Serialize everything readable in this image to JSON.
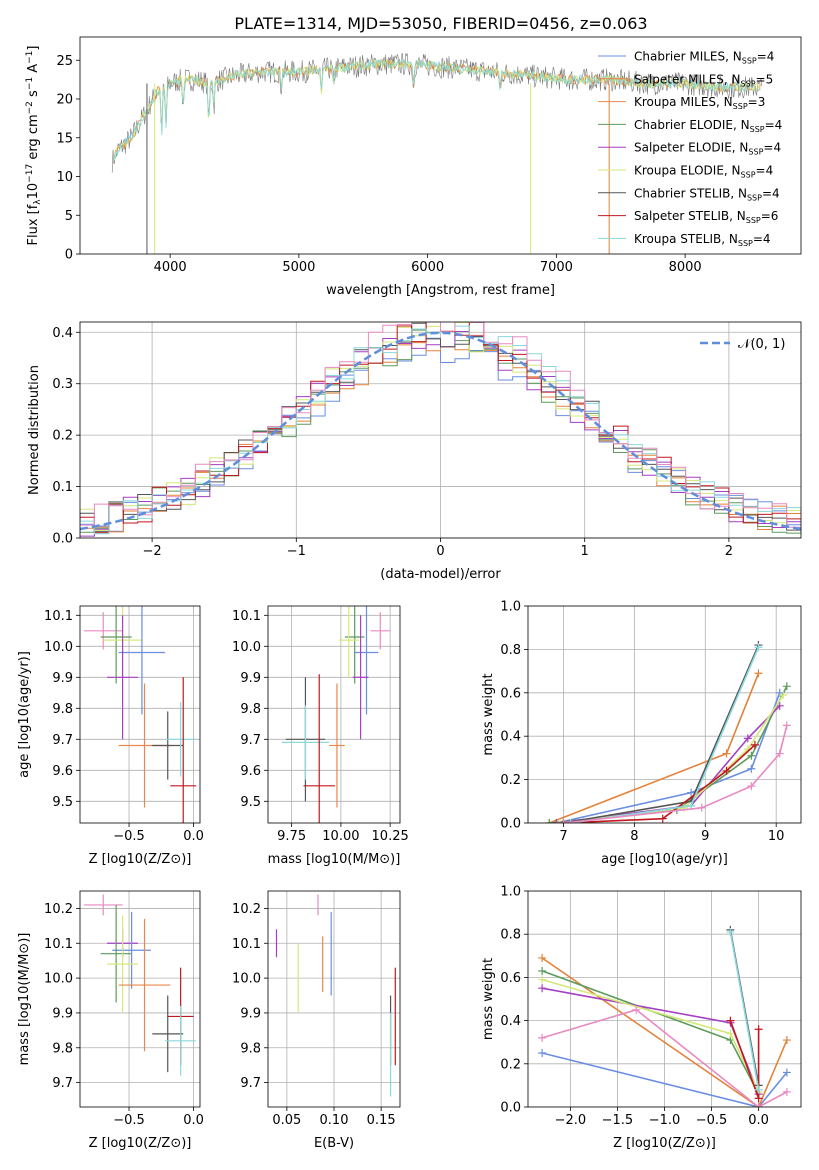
{
  "figure_title": "PLATE=1314, MJD=53050, FIBERID=0456, z=0.063",
  "colors": {
    "Chabrier MILES": "#6a8ee0",
    "Salpeter MILES": "#e4823a",
    "Kroupa MILES": "#e8884f",
    "Chabrier ELODIE": "#5e9b5c",
    "Salpeter ELODIE": "#a53fc4",
    "Kroupa ELODIE": "#d4e87a",
    "Chabrier STELIB": "#555555",
    "Salpeter STELIB": "#c0181e",
    "Kroupa STELIB": "#88d8dc",
    "pink": "#e88ac2",
    "gaussian": "#5f8fdc"
  },
  "chart_data": [
    {
      "id": "spectrum",
      "type": "line",
      "title": "PLATE=1314, MJD=53050, FIBERID=0456, z=0.063",
      "xlabel": "wavelength [Angstrom, rest frame]",
      "ylabel": "Flux [f_λ 10^-17 erg cm^-2 s^-1 A^-1]",
      "xlim": [
        3300,
        8900
      ],
      "ylim": [
        0,
        28
      ],
      "xticks": [
        4000,
        5000,
        6000,
        7000,
        8000
      ],
      "yticks": [
        0,
        5,
        10,
        15,
        20,
        25
      ],
      "legend_position": "top-right",
      "legend": [
        "Chabrier MILES, N_SSP=4",
        "Salpeter MILES, N_SSP=5",
        "Kroupa MILES, N_SSP=3",
        "Chabrier ELODIE, N_SSP=4",
        "Salpeter ELODIE, N_SSP=4",
        "Kroupa ELODIE, N_SSP=4",
        "Chabrier STELIB, N_SSP=4",
        "Salpeter STELIB, N_SSP=6",
        "Kroupa STELIB, N_SSP=4"
      ],
      "continuum": {
        "x": [
          3550,
          3600,
          3700,
          3800,
          3900,
          4000,
          4100,
          4200,
          4300,
          4500,
          4700,
          5000,
          5300,
          5600,
          5900,
          6200,
          6500,
          6800,
          7100,
          7400,
          7700,
          8000,
          8300,
          8600
        ],
        "y": [
          12,
          13.5,
          15,
          18,
          21,
          22,
          22.5,
          22.5,
          22,
          23,
          23.5,
          23.5,
          24,
          24.5,
          24.5,
          24,
          23.5,
          23,
          22.5,
          22.5,
          22,
          22,
          21.5,
          21.5
        ]
      }
    },
    {
      "id": "residuals",
      "type": "step",
      "xlabel": "(data-model)/error",
      "ylabel": "Normed distribution",
      "xlim": [
        -2.5,
        2.5
      ],
      "ylim": [
        0,
        0.42
      ],
      "xticks": [
        -2,
        -1,
        0,
        1,
        2
      ],
      "yticks": [
        0.0,
        0.1,
        0.2,
        0.3,
        0.4
      ],
      "grid": true,
      "legend": [
        "N(0,1)"
      ],
      "legend_position": "top-right",
      "gaussian": {
        "mean": 0,
        "sigma": 1
      }
    },
    {
      "id": "age-vs-Z",
      "type": "errorbar",
      "xlabel": "Z [log10(Z/Z⊙)]",
      "ylabel": "age [log10(age/yr)]",
      "xlim": [
        -0.88,
        0.05
      ],
      "ylim": [
        9.43,
        10.13
      ],
      "xticks": [
        -0.5,
        0.0
      ],
      "yticks": [
        9.5,
        9.6,
        9.7,
        9.8,
        9.9,
        10.0,
        10.1
      ],
      "grid": true,
      "points": [
        {
          "model": "pink",
          "x": -0.7,
          "xerr": 0.15,
          "y": 10.05,
          "yerr": 0.06
        },
        {
          "model": "Chabrier ELODIE",
          "x": -0.6,
          "xerr": 0.12,
          "y": 10.03,
          "yerr": 0.15
        },
        {
          "model": "Kroupa ELODIE",
          "x": -0.55,
          "xerr": 0.15,
          "y": 10.02,
          "yerr": 0.12
        },
        {
          "model": "Chabrier MILES",
          "x": -0.4,
          "xerr": 0.18,
          "y": 9.98,
          "yerr": 0.2
        },
        {
          "model": "Salpeter ELODIE",
          "x": -0.55,
          "xerr": 0.12,
          "y": 9.9,
          "yerr": 0.2
        },
        {
          "model": "Kroupa MILES",
          "x": -0.38,
          "xerr": 0.2,
          "y": 9.68,
          "yerr": 0.2
        },
        {
          "model": "Chabrier STELIB",
          "x": -0.2,
          "xerr": 0.12,
          "y": 9.68,
          "yerr": 0.11
        },
        {
          "model": "Kroupa STELIB",
          "x": -0.1,
          "xerr": 0.12,
          "y": 9.7,
          "yerr": 0.12
        },
        {
          "model": "Salpeter STELIB",
          "x": -0.08,
          "xerr": 0.1,
          "y": 9.55,
          "yerr": 0.35
        }
      ]
    },
    {
      "id": "age-vs-mass",
      "type": "errorbar",
      "xlabel": "mass [log10(M/M⊙)]",
      "ylim": [
        9.43,
        10.13
      ],
      "xlim": [
        9.63,
        10.3
      ],
      "xticks": [
        9.75,
        10.0,
        10.25
      ],
      "yticks": [
        9.5,
        9.6,
        9.7,
        9.8,
        9.9,
        10.0,
        10.1
      ],
      "grid": true,
      "points": [
        {
          "model": "pink",
          "x": 10.2,
          "xerr": 0.05,
          "y": 10.05,
          "yerr": 0.06
        },
        {
          "model": "Chabrier ELODIE",
          "x": 10.07,
          "xerr": 0.05,
          "y": 10.03,
          "yerr": 0.15
        },
        {
          "model": "Kroupa ELODIE",
          "x": 10.04,
          "xerr": 0.05,
          "y": 10.02,
          "yerr": 0.12
        },
        {
          "model": "Chabrier MILES",
          "x": 10.13,
          "xerr": 0.06,
          "y": 9.98,
          "yerr": 0.2
        },
        {
          "model": "Salpeter ELODIE",
          "x": 10.1,
          "xerr": 0.04,
          "y": 9.9,
          "yerr": 0.2
        },
        {
          "model": "Kroupa MILES",
          "x": 9.98,
          "xerr": 0.04,
          "y": 9.68,
          "yerr": 0.2
        },
        {
          "model": "Chabrier STELIB",
          "x": 9.82,
          "xerr": 0.1,
          "y": 9.7,
          "yerr": 0.2
        },
        {
          "model": "Kroupa STELIB",
          "x": 9.82,
          "xerr": 0.12,
          "y": 9.69,
          "yerr": 0.12
        },
        {
          "model": "Salpeter STELIB",
          "x": 9.89,
          "xerr": 0.08,
          "y": 9.55,
          "yerr": 0.36
        }
      ]
    },
    {
      "id": "weight-vs-age",
      "type": "line",
      "xlabel": "age [log10(age/yr)]",
      "ylabel": "mass weight",
      "xlim": [
        6.5,
        10.35
      ],
      "ylim": [
        0,
        1.0
      ],
      "xticks": [
        7,
        8,
        9,
        10
      ],
      "yticks": [
        0.0,
        0.2,
        0.4,
        0.6,
        0.8,
        1.0
      ],
      "grid": true,
      "series": [
        {
          "model": "Chabrier MILES",
          "x": [
            6.9,
            8.8,
            9.65,
            10.05
          ],
          "y": [
            0.0,
            0.14,
            0.25,
            0.6
          ]
        },
        {
          "model": "Salpeter MILES",
          "x": [
            6.8,
            9.3,
            9.75
          ],
          "y": [
            0.0,
            0.32,
            0.69
          ]
        },
        {
          "model": "Chabrier ELODIE",
          "x": [
            6.8,
            8.6,
            9.65,
            10.15
          ],
          "y": [
            0.0,
            0.06,
            0.31,
            0.63
          ]
        },
        {
          "model": "Salpeter ELODIE",
          "x": [
            6.9,
            8.8,
            9.6,
            10.05
          ],
          "y": [
            0.0,
            0.08,
            0.39,
            0.54
          ]
        },
        {
          "model": "Kroupa ELODIE",
          "x": [
            6.95,
            8.7,
            9.6,
            10.1
          ],
          "y": [
            0.0,
            0.07,
            0.34,
            0.59
          ]
        },
        {
          "model": "Chabrier STELIB",
          "x": [
            7.0,
            8.8,
            9.75
          ],
          "y": [
            0.0,
            0.1,
            0.82
          ]
        },
        {
          "model": "Salpeter STELIB",
          "x": [
            7.0,
            8.4,
            9.3,
            9.7
          ],
          "y": [
            0.0,
            0.02,
            0.24,
            0.36
          ]
        },
        {
          "model": "Kroupa STELIB",
          "x": [
            7.1,
            8.8,
            9.75
          ],
          "y": [
            0.0,
            0.08,
            0.81
          ]
        },
        {
          "model": "pink",
          "x": [
            7.0,
            8.95,
            9.65,
            10.05,
            10.15
          ],
          "y": [
            0.0,
            0.07,
            0.17,
            0.32,
            0.45
          ]
        }
      ]
    },
    {
      "id": "mass-vs-Z",
      "type": "errorbar",
      "xlabel": "Z [log10(Z/Z⊙)]",
      "ylabel": "mass [log10(M/M⊙)]",
      "xlim": [
        -0.88,
        0.05
      ],
      "ylim": [
        9.63,
        10.25
      ],
      "xticks": [
        -0.5,
        0.0
      ],
      "yticks": [
        9.7,
        9.8,
        9.9,
        10.0,
        10.1,
        10.2
      ],
      "grid": true,
      "points": [
        {
          "model": "pink",
          "x": -0.7,
          "xerr": 0.15,
          "y": 10.21,
          "yerr": 0.03
        },
        {
          "model": "Salpeter ELODIE",
          "x": -0.55,
          "xerr": 0.12,
          "y": 10.1,
          "yerr": 0.04
        },
        {
          "model": "Chabrier MILES",
          "x": -0.48,
          "xerr": 0.15,
          "y": 10.08,
          "yerr": 0.11
        },
        {
          "model": "Chabrier ELODIE",
          "x": -0.6,
          "xerr": 0.12,
          "y": 10.07,
          "yerr": 0.14
        },
        {
          "model": "Kroupa ELODIE",
          "x": -0.55,
          "xerr": 0.12,
          "y": 10.04,
          "yerr": 0.14
        },
        {
          "model": "Kroupa MILES",
          "x": -0.38,
          "xerr": 0.2,
          "y": 9.98,
          "yerr": 0.19
        },
        {
          "model": "Chabrier STELIB",
          "x": -0.2,
          "xerr": 0.12,
          "y": 9.84,
          "yerr": 0.11
        },
        {
          "model": "Salpeter STELIB",
          "x": -0.1,
          "xerr": 0.1,
          "y": 9.89,
          "yerr": 0.14
        },
        {
          "model": "Kroupa STELIB",
          "x": -0.1,
          "xerr": 0.12,
          "y": 9.82,
          "yerr": 0.1
        }
      ]
    },
    {
      "id": "mass-vs-EBV",
      "type": "errorbar",
      "xlabel": "E(B-V)",
      "xlim": [
        0.03,
        0.17
      ],
      "ylim": [
        9.63,
        10.25
      ],
      "xticks": [
        0.05,
        0.1,
        0.15
      ],
      "yticks": [
        9.7,
        9.8,
        9.9,
        10.0,
        10.1,
        10.2
      ],
      "grid": true,
      "points": [
        {
          "model": "pink",
          "x": 0.083,
          "y": 10.21,
          "yerr": 0.03
        },
        {
          "model": "Salpeter ELODIE",
          "x": 0.039,
          "y": 10.1,
          "yerr": 0.04
        },
        {
          "model": "Chabrier MILES",
          "x": 0.097,
          "y": 10.07,
          "yerr": 0.12
        },
        {
          "model": "Kroupa ELODIE",
          "x": 0.062,
          "y": 10.0,
          "yerr": 0.1
        },
        {
          "model": "Kroupa MILES",
          "x": 0.088,
          "y": 10.04,
          "yerr": 0.08
        },
        {
          "model": "Chabrier STELIB",
          "x": 0.16,
          "y": 9.85,
          "yerr": 0.1
        },
        {
          "model": "Kroupa STELIB",
          "x": 0.16,
          "y": 9.78,
          "yerr": 0.12
        },
        {
          "model": "Salpeter STELIB",
          "x": 0.165,
          "y": 9.89,
          "yerr": 0.14
        }
      ]
    },
    {
      "id": "weight-vs-Z",
      "type": "line",
      "xlabel": "Z [log10(Z/Z⊙)]",
      "ylabel": "mass weight",
      "xlim": [
        -2.45,
        0.45
      ],
      "ylim": [
        0,
        1.0
      ],
      "xticks": [
        -2.0,
        -1.5,
        -1.0,
        -0.5,
        0.0
      ],
      "yticks": [
        0.0,
        0.2,
        0.4,
        0.6,
        0.8,
        1.0
      ],
      "grid": true,
      "series": [
        {
          "model": "Chabrier MILES",
          "x": [
            -2.3,
            0.0,
            0.3
          ],
          "y": [
            0.25,
            0.0,
            0.16
          ]
        },
        {
          "model": "Salpeter MILES",
          "x": [
            -2.3,
            0.0,
            0.3
          ],
          "y": [
            0.69,
            0.0,
            0.31
          ]
        },
        {
          "model": "Chabrier ELODIE",
          "x": [
            -2.3,
            -0.3,
            0.0
          ],
          "y": [
            0.63,
            0.31,
            0.06
          ]
        },
        {
          "model": "Salpeter ELODIE",
          "x": [
            -2.3,
            -0.3,
            0.0
          ],
          "y": [
            0.55,
            0.39,
            0.06
          ]
        },
        {
          "model": "Kroupa ELODIE",
          "x": [
            -2.3,
            -0.3,
            0.0
          ],
          "y": [
            0.59,
            0.34,
            0.07
          ]
        },
        {
          "model": "Chabrier STELIB",
          "x": [
            -0.3,
            0.0
          ],
          "y": [
            0.82,
            0.1
          ]
        },
        {
          "model": "Salpeter STELIB",
          "x": [
            -0.3,
            0.0,
            0.0
          ],
          "y": [
            0.4,
            0.04,
            0.36
          ]
        },
        {
          "model": "Kroupa STELIB",
          "x": [
            -0.3,
            0.0
          ],
          "y": [
            0.81,
            0.08
          ]
        },
        {
          "model": "pink",
          "x": [
            -2.3,
            -1.3,
            0.0,
            0.3
          ],
          "y": [
            0.32,
            0.45,
            0.0,
            0.07
          ]
        }
      ]
    }
  ]
}
